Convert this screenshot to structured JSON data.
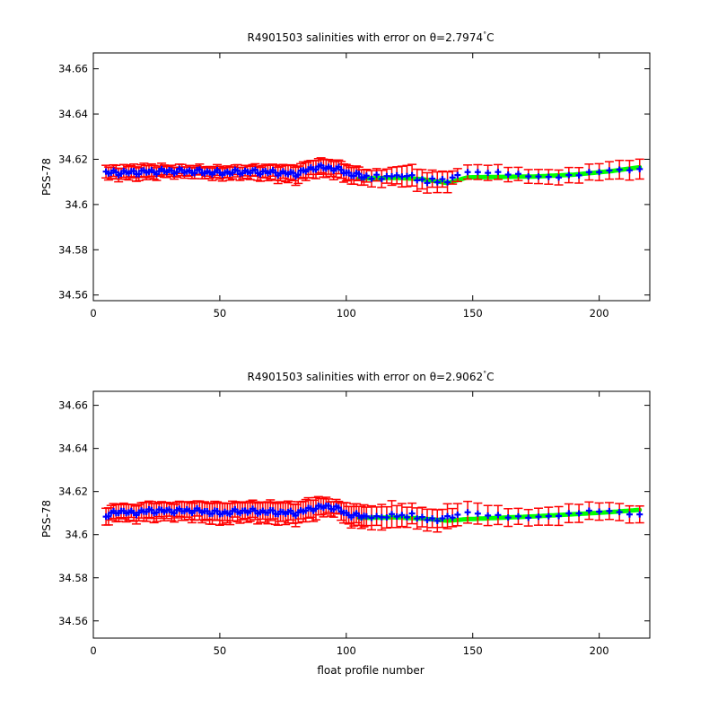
{
  "chart_data": [
    {
      "type": "scatter",
      "title_text": "R4901503 salinities with error on θ=2.7974",
      "title_sup": "°",
      "title_unit": "C",
      "xlabel": "",
      "ylabel": "PSS-78",
      "xlim": [
        0,
        220
      ],
      "ylim": [
        34.5575,
        34.667
      ],
      "xticks": [
        "0",
        "50",
        "100",
        "150",
        "200"
      ],
      "yticks": [
        "34.56",
        "34.58",
        "34.6",
        "34.62",
        "34.64",
        "34.66"
      ],
      "colors": {
        "points": "#0000ff",
        "error_bars": "#ff0000",
        "calibrated": "#00ff00"
      },
      "anchors": {
        "x": [
          5,
          15,
          22,
          30,
          40,
          50,
          60,
          70,
          80,
          88,
          92,
          96,
          100,
          106,
          112,
          118,
          124,
          128,
          132,
          136,
          140,
          144,
          148,
          155,
          165,
          175,
          185,
          195,
          205,
          215
        ],
        "y": [
          34.614,
          34.6142,
          34.6145,
          34.6148,
          34.6146,
          34.614,
          34.6145,
          34.6143,
          34.6135,
          34.6165,
          34.6162,
          34.616,
          34.614,
          34.6125,
          34.612,
          34.6125,
          34.6128,
          34.6115,
          34.61,
          34.611,
          34.61,
          34.6135,
          34.614,
          34.6135,
          34.613,
          34.6128,
          34.613,
          34.6138,
          34.6143,
          34.615
        ],
        "err": [
          0.0025,
          0.0028,
          0.0028,
          0.0022,
          0.0022,
          0.0025,
          0.0025,
          0.003,
          0.0035,
          0.0035,
          0.0035,
          0.0035,
          0.0035,
          0.003,
          0.0032,
          0.0035,
          0.0045,
          0.0045,
          0.004,
          0.004,
          0.004,
          0.0025,
          0.0028,
          0.0032,
          0.0035,
          0.0032,
          0.003,
          0.003,
          0.0035,
          0.0045
        ]
      },
      "calibrated": {
        "x": [
          105,
          120,
          130,
          140,
          148,
          160,
          175,
          190,
          205,
          216
        ],
        "y": [
          34.6115,
          34.6118,
          34.6112,
          34.6095,
          34.612,
          34.6122,
          34.6124,
          34.6132,
          34.6148,
          34.6165
        ]
      }
    },
    {
      "type": "scatter",
      "title_text": "R4901503 salinities with error on θ=2.9062",
      "title_sup": "°",
      "title_unit": "C",
      "xlabel": "float profile number",
      "ylabel": "PSS-78",
      "xlim": [
        0,
        220
      ],
      "ylim": [
        34.552,
        34.6665
      ],
      "xticks": [
        "0",
        "50",
        "100",
        "150",
        "200"
      ],
      "yticks": [
        "34.56",
        "34.58",
        "34.6",
        "34.62",
        "34.64",
        "34.66"
      ],
      "colors": {
        "points": "#0000ff",
        "error_bars": "#ff0000",
        "calibrated": "#00ff00"
      },
      "anchors": {
        "x": [
          5,
          10,
          15,
          22,
          30,
          40,
          50,
          60,
          70,
          80,
          88,
          92,
          96,
          100,
          106,
          112,
          118,
          124,
          128,
          132,
          136,
          140,
          144,
          148,
          155,
          165,
          175,
          185,
          195,
          205,
          215
        ],
        "y": [
          34.6085,
          34.611,
          34.61,
          34.611,
          34.611,
          34.6112,
          34.61,
          34.611,
          34.6105,
          34.61,
          34.6125,
          34.613,
          34.6125,
          34.6095,
          34.6085,
          34.608,
          34.6088,
          34.6088,
          34.6085,
          34.607,
          34.607,
          34.608,
          34.609,
          34.6095,
          34.6085,
          34.6085,
          34.609,
          34.6092,
          34.61,
          34.6103,
          34.6095
        ],
        "err": [
          0.0035,
          0.0035,
          0.0035,
          0.004,
          0.0035,
          0.004,
          0.0045,
          0.004,
          0.0045,
          0.0045,
          0.0045,
          0.0035,
          0.003,
          0.0045,
          0.0045,
          0.005,
          0.0055,
          0.0045,
          0.0045,
          0.0045,
          0.0045,
          0.005,
          0.0045,
          0.0045,
          0.0045,
          0.0045,
          0.004,
          0.004,
          0.0035,
          0.0035,
          0.004
        ]
      },
      "calibrated": {
        "x": [
          105,
          120,
          130,
          140,
          148,
          160,
          175,
          190,
          205,
          216
        ],
        "y": [
          34.6078,
          34.608,
          34.6075,
          34.6065,
          34.6072,
          34.6078,
          34.6085,
          34.6095,
          34.6105,
          34.6115
        ]
      }
    }
  ]
}
